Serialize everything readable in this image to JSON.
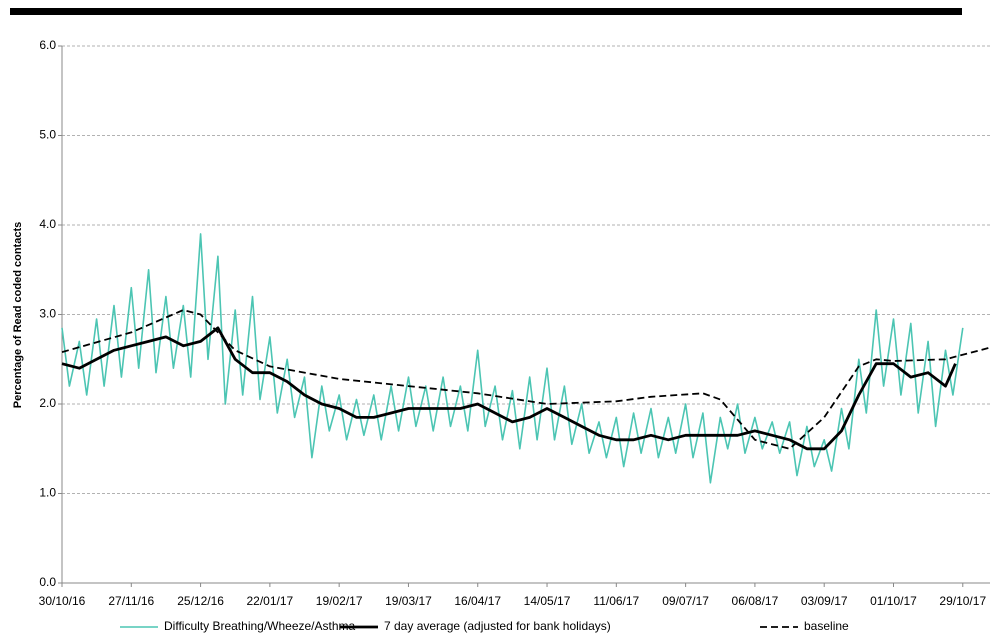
{
  "chart_data": {
    "type": "line",
    "y_label": "Percentage of Read coded contacts",
    "ylim": [
      0,
      6
    ],
    "yticks": [
      {
        "value": 0,
        "label": "0.0"
      },
      {
        "value": 1,
        "label": "1.0"
      },
      {
        "value": 2,
        "label": "2.0"
      },
      {
        "value": 3,
        "label": "3.0"
      },
      {
        "value": 4,
        "label": "4.0"
      },
      {
        "value": 5,
        "label": "5.0"
      },
      {
        "value": 6,
        "label": "6.0"
      }
    ],
    "xlim": [
      "30/10/16",
      "09/11/17"
    ],
    "xticks": [
      "30/10/16",
      "27/11/16",
      "25/12/16",
      "22/01/17",
      "19/02/17",
      "19/03/17",
      "16/04/17",
      "14/05/17",
      "11/06/17",
      "09/07/17",
      "06/08/17",
      "03/09/17",
      "01/10/17",
      "29/10/17"
    ],
    "grid": true,
    "series": [
      {
        "name": "Difficulty Breathing/Wheeze/Asthma",
        "color": "#4cc5b3",
        "x": [
          "30/10/16",
          "02/11/16",
          "06/11/16",
          "09/11/16",
          "13/11/16",
          "16/11/16",
          "20/11/16",
          "23/11/16",
          "27/11/16",
          "30/11/16",
          "04/12/16",
          "07/12/16",
          "11/12/16",
          "14/12/16",
          "18/12/16",
          "21/12/16",
          "25/12/16",
          "28/12/16",
          "01/01/17",
          "04/01/17",
          "08/01/17",
          "11/01/17",
          "15/01/17",
          "18/01/17",
          "22/01/17",
          "25/01/17",
          "29/01/17",
          "01/02/17",
          "05/02/17",
          "08/02/17",
          "12/02/17",
          "15/02/17",
          "19/02/17",
          "22/02/17",
          "26/02/17",
          "01/03/17",
          "05/03/17",
          "08/03/17",
          "12/03/17",
          "15/03/17",
          "19/03/17",
          "22/03/17",
          "26/03/17",
          "29/03/17",
          "02/04/17",
          "05/04/17",
          "09/04/17",
          "12/04/17",
          "16/04/17",
          "19/04/17",
          "23/04/17",
          "26/04/17",
          "30/04/17",
          "03/05/17",
          "07/05/17",
          "10/05/17",
          "14/05/17",
          "17/05/17",
          "21/05/17",
          "24/05/17",
          "28/05/17",
          "31/05/17",
          "04/06/17",
          "07/06/17",
          "11/06/17",
          "14/06/17",
          "18/06/17",
          "21/06/17",
          "25/06/17",
          "28/06/17",
          "02/07/17",
          "05/07/17",
          "09/07/17",
          "12/07/17",
          "16/07/17",
          "19/07/17",
          "23/07/17",
          "26/07/17",
          "30/07/17",
          "02/08/17",
          "06/08/17",
          "09/08/17",
          "13/08/17",
          "16/08/17",
          "20/08/17",
          "23/08/17",
          "27/08/17",
          "30/08/17",
          "03/09/17",
          "06/09/17",
          "10/09/17",
          "13/09/17",
          "17/09/17",
          "20/09/17",
          "24/09/17",
          "27/09/17",
          "01/10/17",
          "04/10/17",
          "08/10/17",
          "11/10/17",
          "15/10/17",
          "18/10/17",
          "22/10/17",
          "25/10/17",
          "29/10/17"
        ],
        "values": [
          2.85,
          2.2,
          2.7,
          2.1,
          2.95,
          2.2,
          3.1,
          2.3,
          3.3,
          2.4,
          3.5,
          2.35,
          3.2,
          2.4,
          3.1,
          2.3,
          3.9,
          2.5,
          3.65,
          2.0,
          3.05,
          2.1,
          3.2,
          2.05,
          2.75,
          1.9,
          2.5,
          1.85,
          2.3,
          1.4,
          2.2,
          1.7,
          2.1,
          1.6,
          2.05,
          1.65,
          2.1,
          1.6,
          2.2,
          1.7,
          2.3,
          1.75,
          2.2,
          1.7,
          2.3,
          1.75,
          2.2,
          1.7,
          2.6,
          1.75,
          2.2,
          1.6,
          2.15,
          1.5,
          2.3,
          1.6,
          2.4,
          1.6,
          2.2,
          1.55,
          2.0,
          1.45,
          1.8,
          1.4,
          1.85,
          1.3,
          1.9,
          1.45,
          1.95,
          1.4,
          1.85,
          1.45,
          2.0,
          1.4,
          1.9,
          1.12,
          1.85,
          1.5,
          2.0,
          1.45,
          1.85,
          1.5,
          1.8,
          1.45,
          1.8,
          1.2,
          1.75,
          1.3,
          1.6,
          1.25,
          1.95,
          1.5,
          2.5,
          1.9,
          3.05,
          2.2,
          2.95,
          2.1,
          2.9,
          1.9,
          2.7,
          1.75,
          2.6,
          2.1,
          2.85
        ]
      },
      {
        "name": "7 day average (adjusted for bank holidays)",
        "color": "#000000",
        "x": [
          "30/10/16",
          "06/11/16",
          "13/11/16",
          "20/11/16",
          "27/11/16",
          "04/12/16",
          "11/12/16",
          "18/12/16",
          "25/12/16",
          "01/01/17",
          "08/01/17",
          "15/01/17",
          "22/01/17",
          "29/01/17",
          "05/02/17",
          "12/02/17",
          "19/02/17",
          "26/02/17",
          "05/03/17",
          "12/03/17",
          "19/03/17",
          "26/03/17",
          "02/04/17",
          "09/04/17",
          "16/04/17",
          "23/04/17",
          "30/04/17",
          "07/05/17",
          "14/05/17",
          "21/05/17",
          "28/05/17",
          "04/06/17",
          "11/06/17",
          "18/06/17",
          "25/06/17",
          "02/07/17",
          "09/07/17",
          "16/07/17",
          "23/07/17",
          "30/07/17",
          "06/08/17",
          "13/08/17",
          "20/08/17",
          "27/08/17",
          "03/09/17",
          "10/09/17",
          "17/09/17",
          "24/09/17",
          "01/10/17",
          "08/10/17",
          "15/10/17",
          "22/10/17",
          "26/10/17"
        ],
        "values": [
          2.45,
          2.4,
          2.5,
          2.6,
          2.65,
          2.7,
          2.75,
          2.65,
          2.7,
          2.85,
          2.5,
          2.35,
          2.35,
          2.25,
          2.1,
          2.0,
          1.95,
          1.85,
          1.85,
          1.9,
          1.95,
          1.95,
          1.95,
          1.95,
          2.0,
          1.9,
          1.8,
          1.85,
          1.95,
          1.85,
          1.75,
          1.65,
          1.6,
          1.6,
          1.65,
          1.6,
          1.65,
          1.65,
          1.65,
          1.65,
          1.7,
          1.65,
          1.6,
          1.5,
          1.5,
          1.7,
          2.1,
          2.45,
          2.45,
          2.3,
          2.35,
          2.2,
          2.45
        ]
      },
      {
        "name": "baseline",
        "color": "#000000",
        "x": [
          "30/10/16",
          "27/11/16",
          "18/12/16",
          "25/12/16",
          "08/01/17",
          "22/01/17",
          "19/02/17",
          "19/03/17",
          "16/04/17",
          "14/05/17",
          "11/06/17",
          "25/06/17",
          "16/07/17",
          "23/07/17",
          "06/08/17",
          "20/08/17",
          "03/09/17",
          "17/09/17",
          "24/09/17",
          "01/10/17",
          "22/10/17",
          "09/11/17"
        ],
        "values": [
          2.58,
          2.8,
          3.05,
          3.0,
          2.6,
          2.42,
          2.28,
          2.2,
          2.12,
          2.0,
          2.03,
          2.08,
          2.12,
          2.05,
          1.6,
          1.5,
          1.85,
          2.42,
          2.5,
          2.48,
          2.5,
          2.63
        ]
      }
    ]
  }
}
